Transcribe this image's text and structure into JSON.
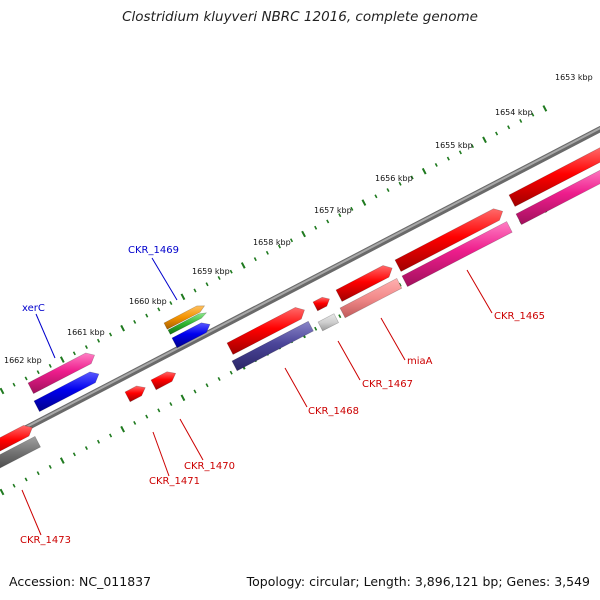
{
  "title": "Clostridium kluyveri NBRC 12016, complete genome",
  "footer": {
    "accession": "Accession: NC_011837",
    "topology": "Topology: circular; Length: 3,896,121 bp; Genes: 3,549"
  },
  "colors": {
    "backbone": "#808080",
    "tick": "#1f7a1f",
    "forward_label": "#0000cc",
    "reverse_label": "#cc0000",
    "label_line_forward": "#0000cc",
    "label_line_reverse": "#cc0000"
  },
  "kbp_labels": [
    "1653 kbp",
    "1654 kbp",
    "1655 kbp",
    "1656 kbp",
    "1657 kbp",
    "1658 kbp",
    "1659 kbp",
    "1660 kbp",
    "1661 kbp",
    "1662 kbp"
  ],
  "gene_labels": [
    {
      "key": "xerc",
      "text": "xerC",
      "color": "#0000cc"
    },
    {
      "key": "ckr1469",
      "text": "CKR_1469",
      "color": "#0000cc"
    },
    {
      "key": "ckr1465",
      "text": "CKR_1465",
      "color": "#cc0000"
    },
    {
      "key": "miaa",
      "text": "miaA",
      "color": "#cc0000"
    },
    {
      "key": "ckr1467",
      "text": "CKR_1467",
      "color": "#cc0000"
    },
    {
      "key": "ckr1468",
      "text": "CKR_1468",
      "color": "#cc0000"
    },
    {
      "key": "ckr1470",
      "text": "CKR_1470",
      "color": "#cc0000"
    },
    {
      "key": "ckr1471",
      "text": "CKR_1471",
      "color": "#cc0000"
    },
    {
      "key": "ckr1473",
      "text": "CKR_1473",
      "color": "#cc0000"
    }
  ]
}
